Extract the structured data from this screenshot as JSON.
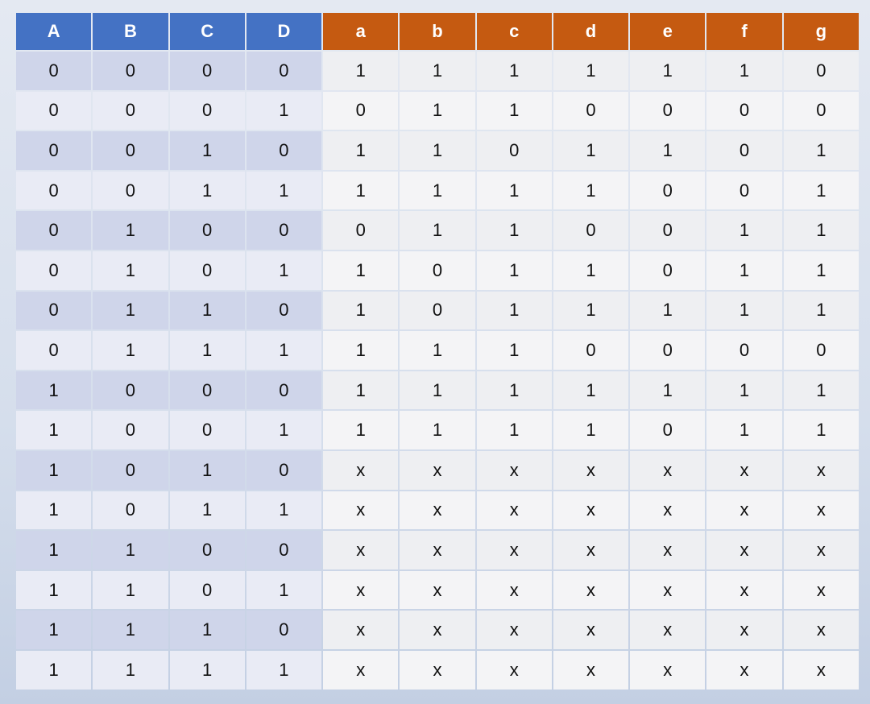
{
  "table": {
    "header": [
      "A",
      "B",
      "C",
      "D",
      "a",
      "b",
      "c",
      "d",
      "e",
      "f",
      "g"
    ],
    "rows": [
      [
        "0",
        "0",
        "0",
        "0",
        "1",
        "1",
        "1",
        "1",
        "1",
        "1",
        "0"
      ],
      [
        "0",
        "0",
        "0",
        "1",
        "0",
        "1",
        "1",
        "0",
        "0",
        "0",
        "0"
      ],
      [
        "0",
        "0",
        "1",
        "0",
        "1",
        "1",
        "0",
        "1",
        "1",
        "0",
        "1"
      ],
      [
        "0",
        "0",
        "1",
        "1",
        "1",
        "1",
        "1",
        "1",
        "0",
        "0",
        "1"
      ],
      [
        "0",
        "1",
        "0",
        "0",
        "0",
        "1",
        "1",
        "0",
        "0",
        "1",
        "1"
      ],
      [
        "0",
        "1",
        "0",
        "1",
        "1",
        "0",
        "1",
        "1",
        "0",
        "1",
        "1"
      ],
      [
        "0",
        "1",
        "1",
        "0",
        "1",
        "0",
        "1",
        "1",
        "1",
        "1",
        "1"
      ],
      [
        "0",
        "1",
        "1",
        "1",
        "1",
        "1",
        "1",
        "0",
        "0",
        "0",
        "0"
      ],
      [
        "1",
        "0",
        "0",
        "0",
        "1",
        "1",
        "1",
        "1",
        "1",
        "1",
        "1"
      ],
      [
        "1",
        "0",
        "0",
        "1",
        "1",
        "1",
        "1",
        "1",
        "0",
        "1",
        "1"
      ],
      [
        "1",
        "0",
        "1",
        "0",
        "x",
        "x",
        "x",
        "x",
        "x",
        "x",
        "x"
      ],
      [
        "1",
        "0",
        "1",
        "1",
        "x",
        "x",
        "x",
        "x",
        "x",
        "x",
        "x"
      ],
      [
        "1",
        "1",
        "0",
        "0",
        "x",
        "x",
        "x",
        "x",
        "x",
        "x",
        "x"
      ],
      [
        "1",
        "1",
        "0",
        "1",
        "x",
        "x",
        "x",
        "x",
        "x",
        "x",
        "x"
      ],
      [
        "1",
        "1",
        "1",
        "0",
        "x",
        "x",
        "x",
        "x",
        "x",
        "x",
        "x"
      ],
      [
        "1",
        "1",
        "1",
        "1",
        "x",
        "x",
        "x",
        "x",
        "x",
        "x",
        "x"
      ]
    ]
  }
}
